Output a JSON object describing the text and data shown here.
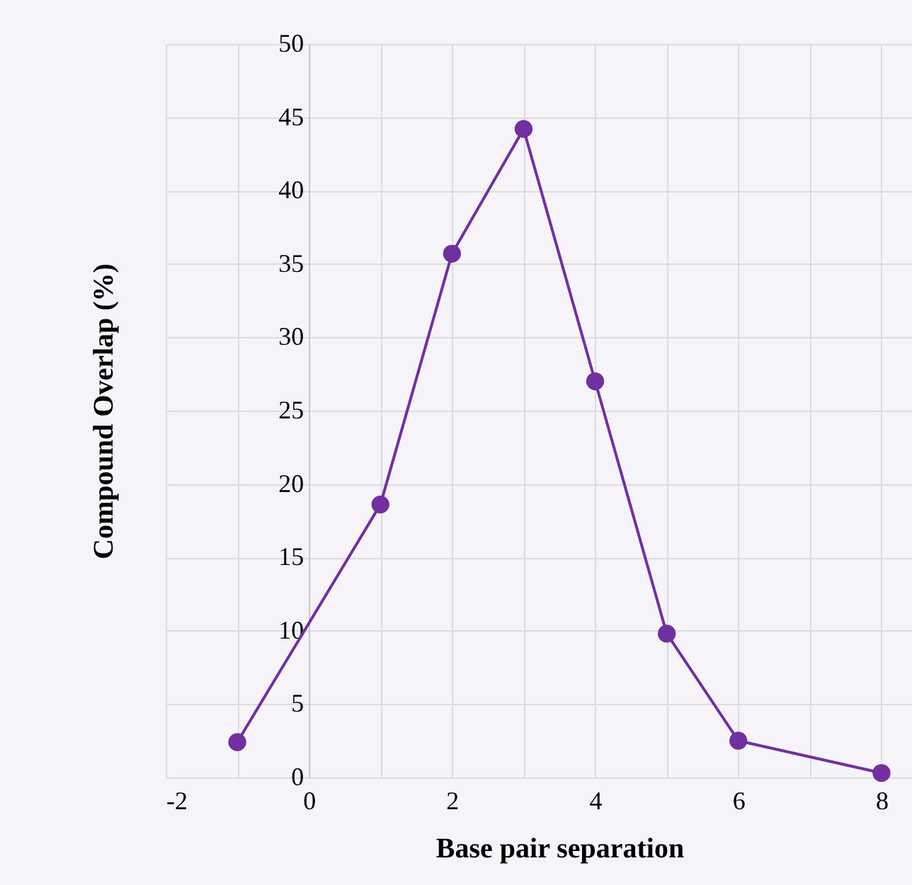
{
  "chart_data": {
    "type": "line",
    "xlabel": "Base pair separation",
    "ylabel": "Compound Overlap (%)",
    "x": [
      -1,
      1,
      2,
      3,
      4,
      5,
      6,
      8
    ],
    "series": [
      {
        "color": "#7030a0",
        "values": [
          2.4,
          18.6,
          35.7,
          44.2,
          27.0,
          9.8,
          2.5,
          0.3
        ]
      }
    ],
    "xlim": [
      -2,
      9
    ],
    "xticks": [
      -2,
      {
        "value": -1,
        "label": null
      },
      0,
      {
        "value": 1,
        "label": null
      },
      2,
      {
        "value": 3,
        "label": null
      },
      4,
      {
        "value": 5,
        "label": null
      },
      6,
      {
        "value": 7,
        "label": null
      },
      8
    ],
    "ylim": [
      0,
      50
    ],
    "yticks": [
      0,
      5,
      10,
      15,
      20,
      25,
      30,
      35,
      40,
      45,
      50
    ],
    "grid": true,
    "marker": "circle",
    "line_style": "solid"
  }
}
